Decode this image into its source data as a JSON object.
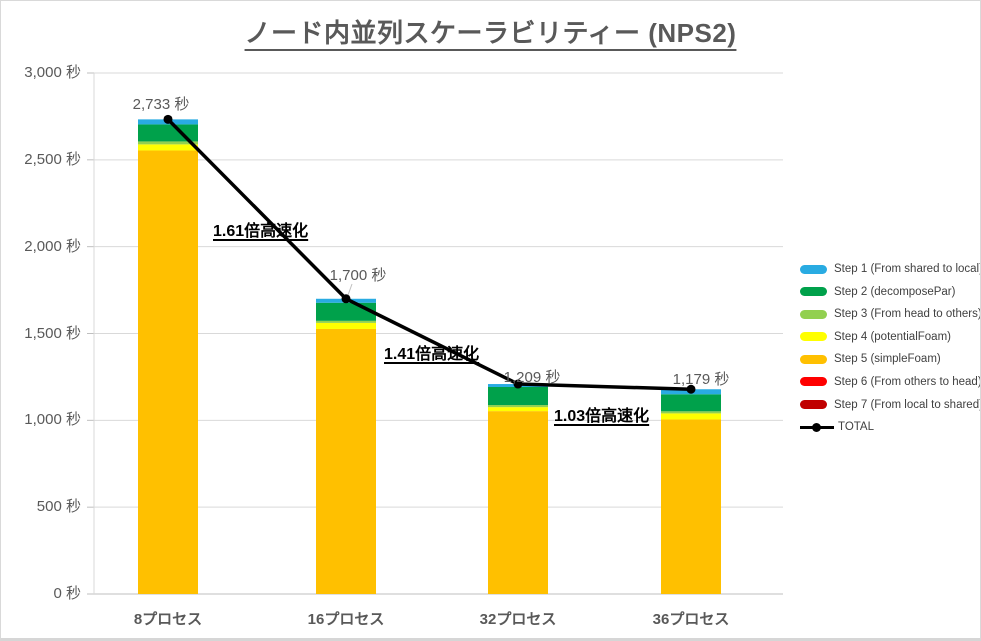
{
  "title": "ノード内並列スケーラビリティー (NPS2)",
  "chart_data": {
    "type": "bar",
    "stacked": true,
    "unit": "秒",
    "categories": [
      "8プロセス",
      "16プロセス",
      "32プロセス",
      "36プロセス"
    ],
    "series": [
      {
        "name": "Step 1 (From shared to local)",
        "color": "#29ABE2",
        "values": [
          29,
          23,
          17,
          29
        ]
      },
      {
        "name": "Step 2 (decomposePar)",
        "color": "#00A14B",
        "values": [
          98,
          104,
          104,
          98
        ]
      },
      {
        "name": "Step 3 (From head to others)",
        "color": "#92D050",
        "values": [
          17,
          12,
          12,
          12
        ]
      },
      {
        "name": "Step 4 (potentialFoam)",
        "color": "#FFFF00",
        "values": [
          35,
          35,
          23,
          35
        ]
      },
      {
        "name": "Step 5 (simpleFoam)",
        "color": "#FFC000",
        "values": [
          2554,
          1526,
          1053,
          1005
        ]
      },
      {
        "name": "Step 6 (From others to head)",
        "color": "#FF0000",
        "values": [
          0,
          0,
          0,
          0
        ]
      },
      {
        "name": "Step 7 (From local to shared)",
        "color": "#C00000",
        "values": [
          0,
          0,
          0,
          0
        ]
      }
    ],
    "stack_order_bottom_to_top": [
      "Step 7",
      "Step 6",
      "Step 5",
      "Step 4",
      "Step 3",
      "Step 2",
      "Step 1"
    ],
    "total_series": {
      "name": "TOTAL",
      "color": "#000000",
      "values": [
        2733,
        1700,
        1209,
        1179
      ]
    },
    "total_labels": [
      "2,733 秒",
      "1,700 秒",
      "1,209 秒",
      "1,179 秒"
    ],
    "y_tick_labels": [
      "0 秒",
      "500 秒",
      "1,000 秒",
      "1,500 秒",
      "2,000 秒",
      "2,500 秒",
      "3,000 秒"
    ],
    "ylim": [
      0,
      3000
    ],
    "y_tick_step": 500,
    "grid": true,
    "legend_position": "right",
    "annotations": [
      {
        "text": "1.61倍高速化"
      },
      {
        "text": "1.41倍高速化"
      },
      {
        "text": "1.03倍高速化"
      }
    ],
    "colors": {
      "grid": "#D9D9D9",
      "axis": "#BFBFBF",
      "text_gray": "#595959",
      "annotation": "#000000"
    }
  }
}
